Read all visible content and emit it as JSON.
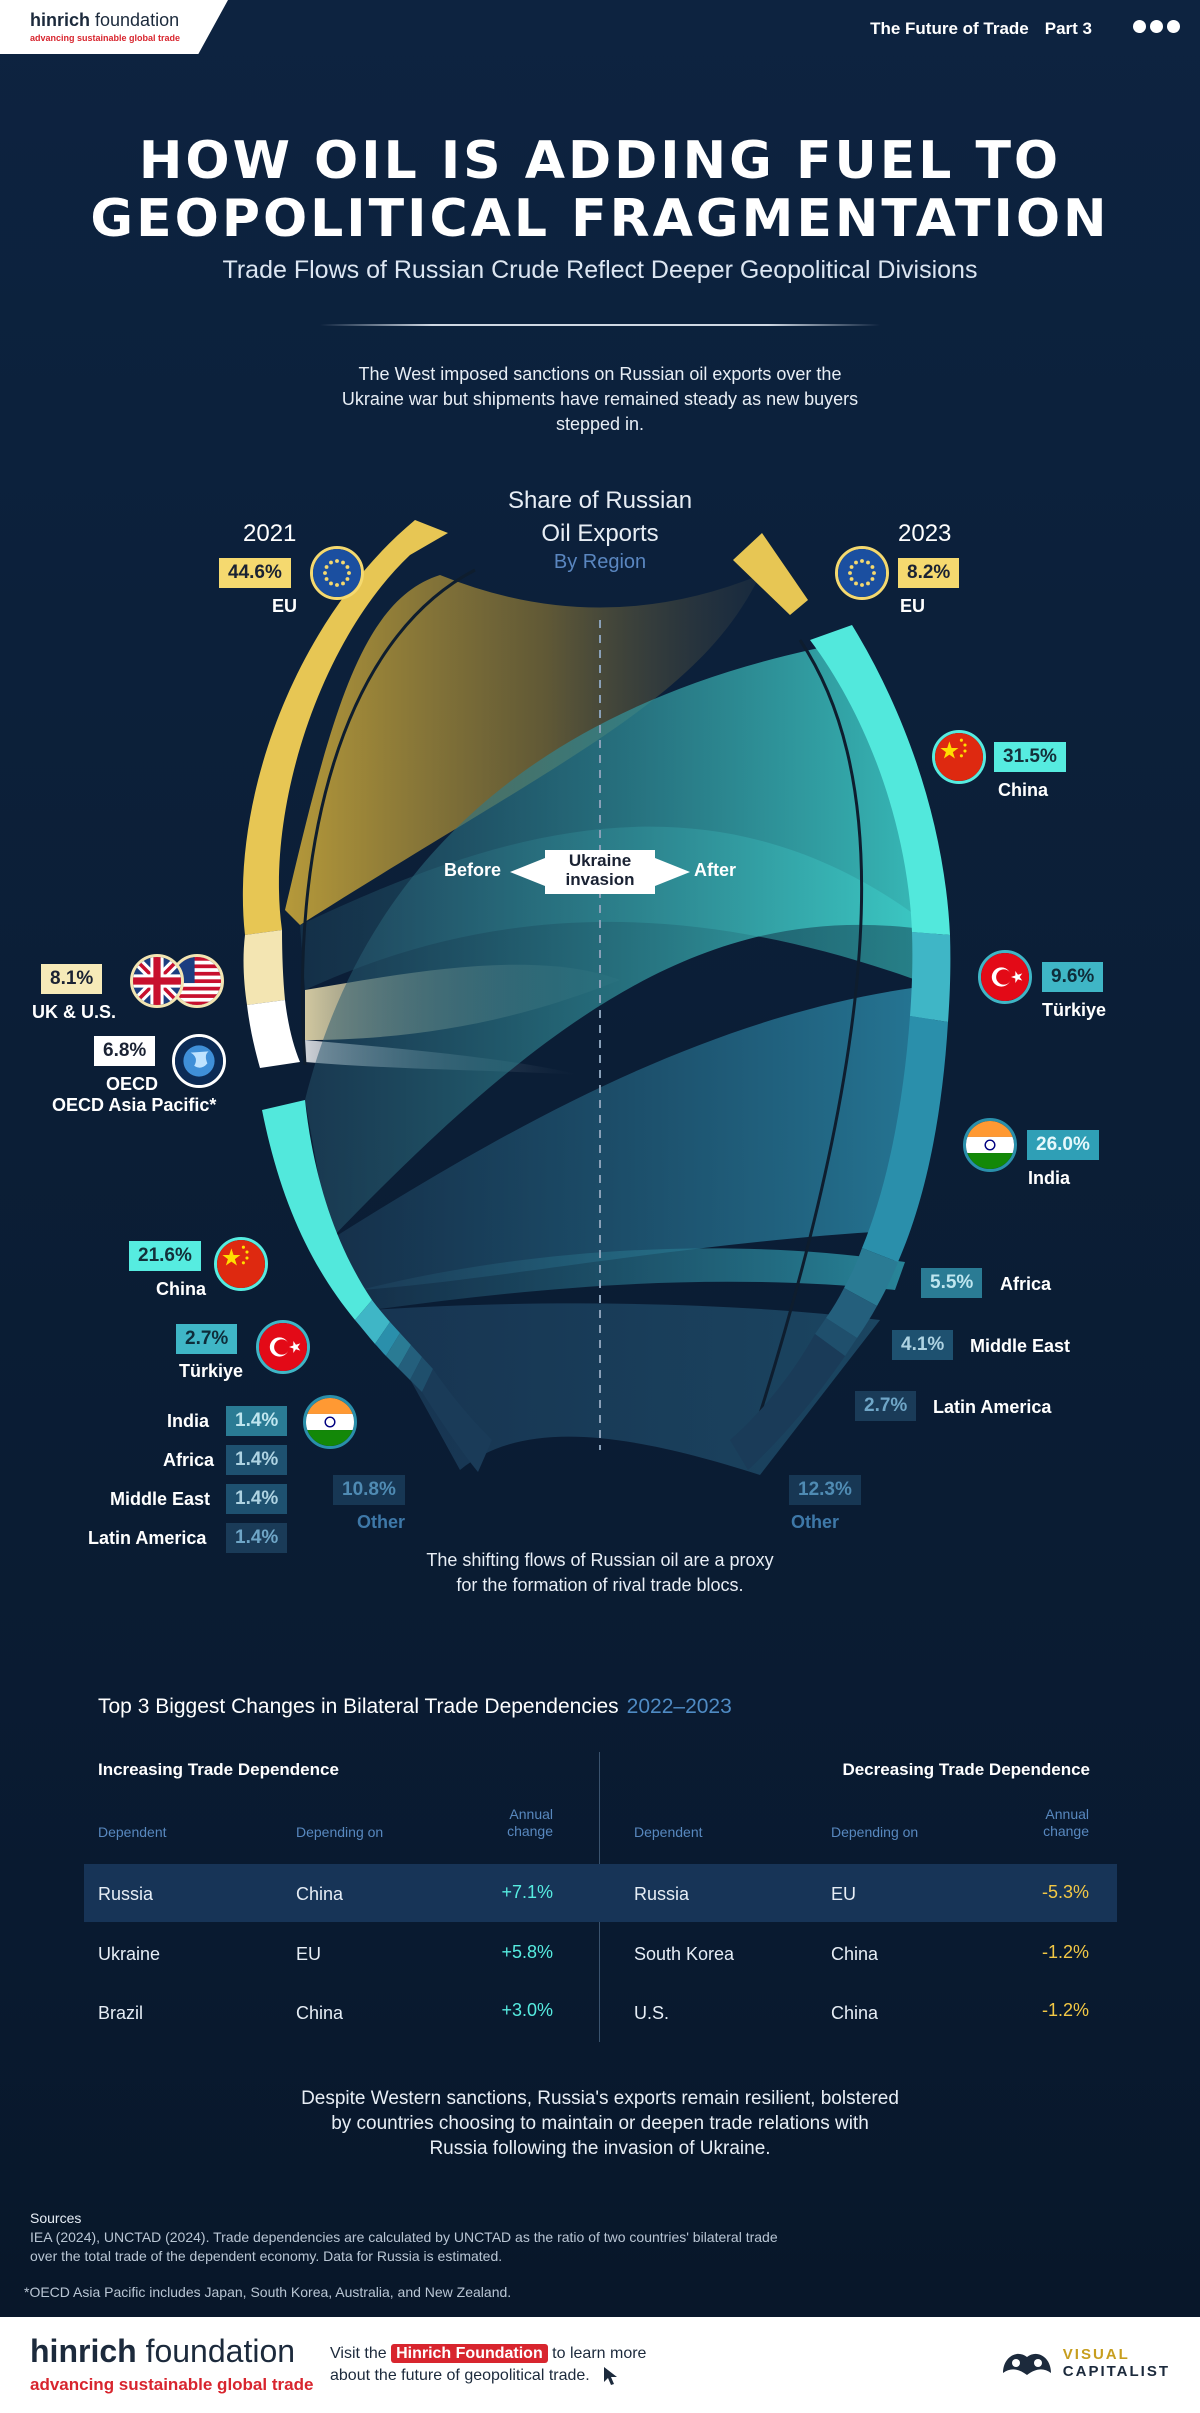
{
  "header": {
    "logo_name_bold": "hinrich",
    "logo_name_rest": " foundation",
    "logo_tagline": "advancing sustainable global trade",
    "series": "The Future of Trade",
    "part": "Part 3"
  },
  "title_line1": "HOW OIL IS ADDING FUEL TO",
  "title_line2": "GEOPOLITICAL FRAGMENTATION",
  "subtitle": "Trade Flows of Russian Crude Reflect Deeper Geopolitical Divisions",
  "intro": "The West imposed sanctions on Russian oil exports over the Ukraine war but shipments have remained steady as new buyers stepped in.",
  "chart": {
    "title_line1": "Share of Russian",
    "title_line2": "Oil Exports",
    "subtitle": "By Region",
    "before": "Before",
    "after": "After",
    "event_line1": "Ukraine",
    "event_line2": "invasion",
    "year_left": "2021",
    "year_right": "2023"
  },
  "chart_data": {
    "type": "chord",
    "title": "Share of Russian Oil Exports",
    "subtitle": "By Region",
    "unit": "%",
    "series": [
      {
        "name": "2021",
        "slices": [
          {
            "region": "EU",
            "value": 44.6,
            "label": "44.6%",
            "color": "#e7c654"
          },
          {
            "region": "UK & U.S.",
            "value": 8.1,
            "label": "8.1%",
            "color": "#f3e5b2"
          },
          {
            "region": "OECD Asia Pacific*",
            "value": 6.8,
            "label": "6.8%",
            "color": "#ffffff"
          },
          {
            "region": "China",
            "value": 21.6,
            "label": "21.6%",
            "color": "#52e8dc"
          },
          {
            "region": "Türkiye",
            "value": 2.7,
            "label": "2.7%",
            "color": "#3fb6c6"
          },
          {
            "region": "India",
            "value": 1.4,
            "label": "1.4%",
            "color": "#2a8fab"
          },
          {
            "region": "Africa",
            "value": 1.4,
            "label": "1.4%",
            "color": "#2a7b94"
          },
          {
            "region": "Middle East",
            "value": 1.4,
            "label": "1.4%",
            "color": "#245f7c"
          },
          {
            "region": "Latin America",
            "value": 1.4,
            "label": "1.4%",
            "color": "#1f4f6c"
          },
          {
            "region": "Other",
            "value": 10.8,
            "label": "10.8%",
            "color": "#1a3b58"
          }
        ]
      },
      {
        "name": "2023",
        "slices": [
          {
            "region": "EU",
            "value": 8.2,
            "label": "8.2%",
            "color": "#e7c654"
          },
          {
            "region": "China",
            "value": 31.5,
            "label": "31.5%",
            "color": "#52e8dc"
          },
          {
            "region": "Türkiye",
            "value": 9.6,
            "label": "9.6%",
            "color": "#3fb6c6"
          },
          {
            "region": "India",
            "value": 26.0,
            "label": "26.0%",
            "color": "#2a8fab"
          },
          {
            "region": "Africa",
            "value": 5.5,
            "label": "5.5%",
            "color": "#2a7b94"
          },
          {
            "region": "Middle East",
            "value": 4.1,
            "label": "4.1%",
            "color": "#245f7c"
          },
          {
            "region": "Latin America",
            "value": 2.7,
            "label": "2.7%",
            "color": "#1f4f6c"
          },
          {
            "region": "Other",
            "value": 12.3,
            "label": "12.3%",
            "color": "#1a3b58"
          }
        ]
      }
    ]
  },
  "flow_note": "The shifting flows of Russian oil are a proxy for the formation of rival trade blocs.",
  "table": {
    "title": "Top 3 Biggest Changes in Bilateral Trade Dependencies",
    "years": "2022–2023",
    "increasing": {
      "heading": "Increasing Trade Dependence",
      "col_dependent": "Dependent",
      "col_depending": "Depending on",
      "col_change_1": "Annual",
      "col_change_2": "change",
      "rows": [
        {
          "dependent": "Russia",
          "depending": "China",
          "change": "+7.1%"
        },
        {
          "dependent": "Ukraine",
          "depending": "EU",
          "change": "+5.8%"
        },
        {
          "dependent": "Brazil",
          "depending": "China",
          "change": "+3.0%"
        }
      ]
    },
    "decreasing": {
      "heading": "Decreasing Trade Dependence",
      "col_dependent": "Dependent",
      "col_depending": "Depending on",
      "col_change_1": "Annual",
      "col_change_2": "change",
      "rows": [
        {
          "dependent": "Russia",
          "depending": "EU",
          "change": "-5.3%"
        },
        {
          "dependent": "South Korea",
          "depending": "China",
          "change": "-1.2%"
        },
        {
          "dependent": "U.S.",
          "depending": "China",
          "change": "-1.2%"
        }
      ]
    }
  },
  "closing": "Despite Western sanctions, Russia's exports remain resilient, bolstered by countries choosing to maintain or deepen trade relations with Russia following the invasion of Ukraine.",
  "sources_heading": "Sources",
  "sources_text": "IEA (2024), UNCTAD (2024). Trade dependencies are calculated by UNCTAD as the ratio of two countries' bilateral trade over the total trade of the dependent economy. Data for Russia is estimated.",
  "footnote": "*OECD Asia Pacific includes Japan, South Korea, Australia, and New Zealand.",
  "footer": {
    "name_bold": "hinrich",
    "name_rest": " foundation",
    "tagline": "advancing sustainable global trade",
    "visit_pre": "Visit the ",
    "visit_link": "Hinrich Foundation",
    "visit_post": " to learn more",
    "visit_line2": "about the future of geopolitical trade.",
    "vc_line1": "VISUAL",
    "vc_line2": "CAPITALIST"
  },
  "flags": [
    "eu-flag-icon",
    "uk-flag-icon",
    "us-flag-icon",
    "globe-icon",
    "china-flag-icon",
    "turkiye-flag-icon",
    "india-flag-icon"
  ]
}
